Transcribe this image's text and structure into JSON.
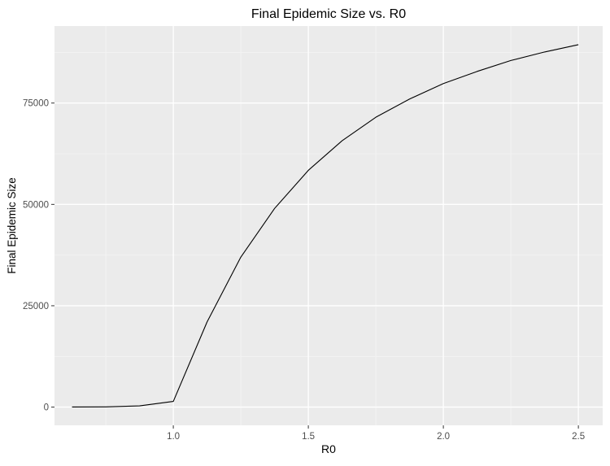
{
  "chart_data": {
    "type": "line",
    "title": "Final Epidemic Size vs. R0",
    "xlabel": "R0",
    "ylabel": "Final Epidemic Size",
    "xlim": [
      0.56,
      2.59
    ],
    "ylim": [
      -4500,
      94000
    ],
    "x_ticks": [
      1.0,
      1.5,
      2.0,
      2.5
    ],
    "x_tick_labels": [
      "1.0",
      "1.5",
      "2.0",
      "2.5"
    ],
    "y_ticks": [
      0,
      25000,
      50000,
      75000
    ],
    "y_tick_labels": [
      "0",
      "25000",
      "50000",
      "75000"
    ],
    "grid": true,
    "legend": "none",
    "series": [
      {
        "color": "#000000",
        "x": [
          0.625,
          0.75,
          0.875,
          1.0,
          1.125,
          1.25,
          1.375,
          1.5,
          1.625,
          1.75,
          1.875,
          2.0,
          2.125,
          2.25,
          2.375,
          2.5
        ],
        "y": [
          20,
          50,
          300,
          1400,
          21000,
          37000,
          49000,
          58400,
          65700,
          71500,
          76000,
          79800,
          82800,
          85500,
          87600,
          89400
        ]
      }
    ]
  },
  "style": {
    "panel_bg": "#ebebeb",
    "grid_major": "#ffffff",
    "grid_minor": "#f5f5f5",
    "axis_text": "#4d4d4d",
    "tick_mark": "#333333",
    "line": "#000000"
  }
}
